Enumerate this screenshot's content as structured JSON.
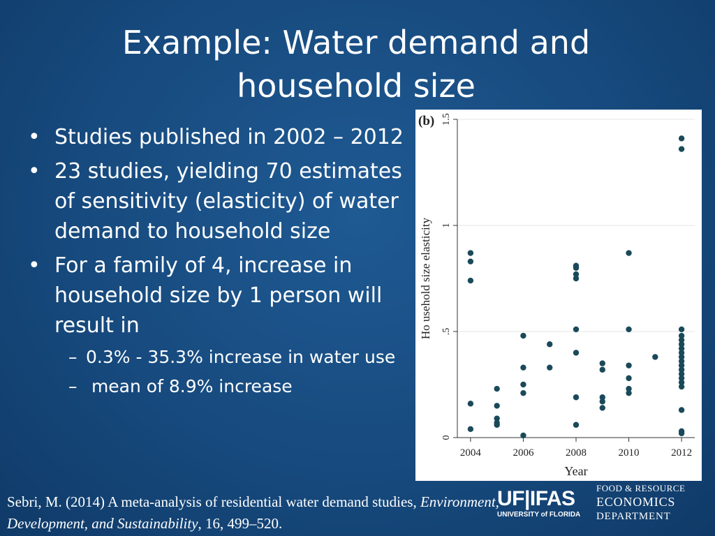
{
  "slide": {
    "title": "Example: Water demand and household size",
    "bullets": [
      "Studies published in 2002 – 2012",
      "23 studies, yielding 70 estimates of sensitivity (elasticity) of water demand to household size",
      "For a family of 4, increase in household size by 1 person will result in"
    ],
    "sub_bullets": [
      "0.3% - 35.3% increase in water use",
      " mean of 8.9% increase"
    ],
    "bullet_marker": "•",
    "sub_marker": "–"
  },
  "citation": {
    "part1": "Sebri, M. (2014) A meta-analysis of residential water demand studies, ",
    "journal": "Environment, Development, and Sustainability",
    "part2": ", 16, 499–520."
  },
  "logo": {
    "uf_ifas": "UF|IFAS",
    "university": "UNIVERSITY of FLORIDA",
    "dept_line1": "FOOD & RESOURCE",
    "dept_line2": "ECONOMICS",
    "dept_line3": "DEPARTMENT"
  },
  "colors": {
    "background": "#174a7e",
    "marker": "#1a4a5a",
    "grid": "#e6e6e6"
  },
  "chart_data": {
    "type": "scatter",
    "panel_label": "(b)",
    "xlabel": "Year",
    "ylabel": "Ho usehold size elasticity",
    "x_ticks": [
      2004,
      2006,
      2008,
      2010,
      2012
    ],
    "y_ticks": [
      0,
      0.5,
      1,
      1.5
    ],
    "y_tick_labels": [
      "0",
      ".5",
      "1",
      "1.5"
    ],
    "xlim": [
      2003.5,
      2012.5
    ],
    "ylim": [
      0,
      1.5
    ],
    "grid": true,
    "points": [
      [
        2004,
        0.87
      ],
      [
        2004,
        0.83
      ],
      [
        2004,
        0.74
      ],
      [
        2004,
        0.16
      ],
      [
        2004,
        0.04
      ],
      [
        2005,
        0.23
      ],
      [
        2005,
        0.15
      ],
      [
        2005,
        0.09
      ],
      [
        2005,
        0.07
      ],
      [
        2005,
        0.06
      ],
      [
        2006,
        0.48
      ],
      [
        2006,
        0.33
      ],
      [
        2006,
        0.25
      ],
      [
        2006,
        0.21
      ],
      [
        2006,
        0.01
      ],
      [
        2007,
        0.44
      ],
      [
        2007,
        0.33
      ],
      [
        2008,
        0.81
      ],
      [
        2008,
        0.8
      ],
      [
        2008,
        0.77
      ],
      [
        2008,
        0.75
      ],
      [
        2008,
        0.51
      ],
      [
        2008,
        0.4
      ],
      [
        2008,
        0.19
      ],
      [
        2008,
        0.06
      ],
      [
        2009,
        0.35
      ],
      [
        2009,
        0.32
      ],
      [
        2009,
        0.19
      ],
      [
        2009,
        0.17
      ],
      [
        2009,
        0.14
      ],
      [
        2010,
        0.87
      ],
      [
        2010,
        0.51
      ],
      [
        2010,
        0.34
      ],
      [
        2010,
        0.28
      ],
      [
        2010,
        0.23
      ],
      [
        2010,
        0.21
      ],
      [
        2011,
        0.38
      ],
      [
        2012,
        1.41
      ],
      [
        2012,
        1.36
      ],
      [
        2012,
        0.51
      ],
      [
        2012,
        0.48
      ],
      [
        2012,
        0.46
      ],
      [
        2012,
        0.44
      ],
      [
        2012,
        0.42
      ],
      [
        2012,
        0.4
      ],
      [
        2012,
        0.38
      ],
      [
        2012,
        0.36
      ],
      [
        2012,
        0.34
      ],
      [
        2012,
        0.32
      ],
      [
        2012,
        0.3
      ],
      [
        2012,
        0.28
      ],
      [
        2012,
        0.26
      ],
      [
        2012,
        0.24
      ],
      [
        2012,
        0.13
      ],
      [
        2012,
        0.03
      ],
      [
        2012,
        0.02
      ]
    ]
  }
}
